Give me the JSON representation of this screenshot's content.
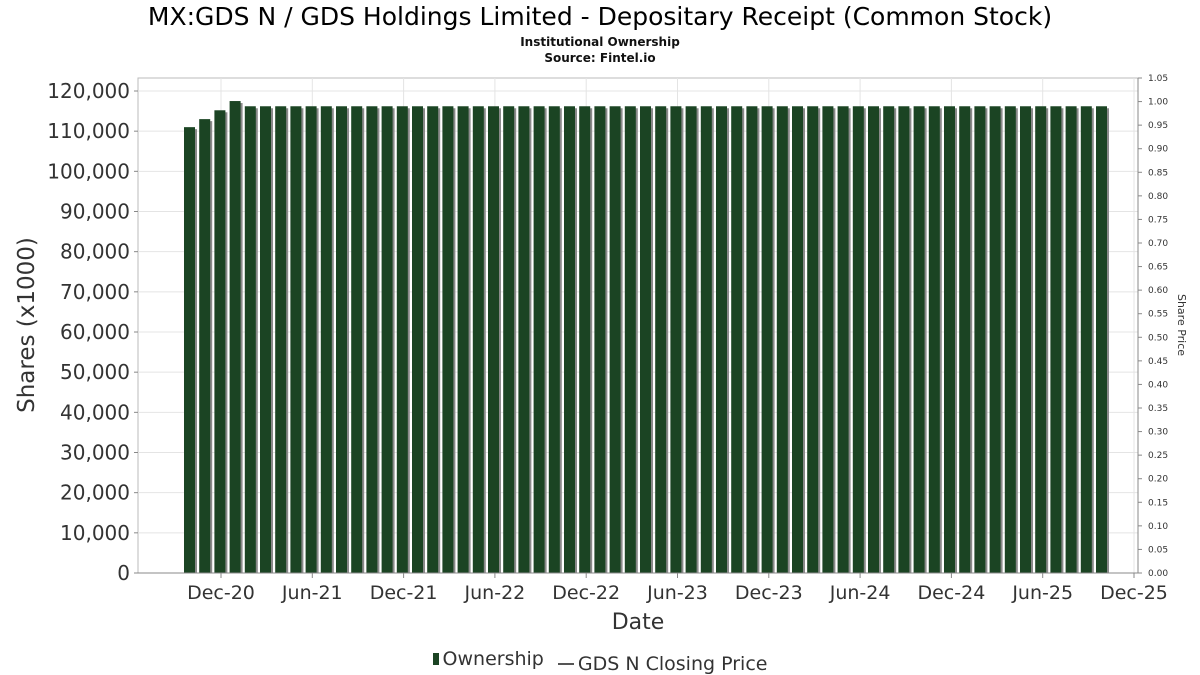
{
  "chart_data": {
    "type": "bar",
    "title": "MX:GDS N / GDS Holdings Limited - Depositary Receipt (Common Stock)",
    "subtitle": [
      "Institutional Ownership",
      "Source: Fintel.io"
    ],
    "xlabel": "Date",
    "ylabel": "Shares (x1000)",
    "y2label": "Share Price",
    "ylim": [
      0,
      120000
    ],
    "y2lim": [
      0,
      1.05
    ],
    "yticks": [
      "0",
      "10,000",
      "20,000",
      "30,000",
      "40,000",
      "50,000",
      "60,000",
      "70,000",
      "80,000",
      "90,000",
      "100,000",
      "110,000",
      "120,000"
    ],
    "y2ticks": [
      "0.00",
      "0.05",
      "0.10",
      "0.15",
      "0.20",
      "0.25",
      "0.30",
      "0.35",
      "0.40",
      "0.45",
      "0.50",
      "0.55",
      "0.60",
      "0.65",
      "0.70",
      "0.75",
      "0.80",
      "0.85",
      "0.90",
      "0.95",
      "1.00",
      "1.05"
    ],
    "xticks": [
      "Dec-20",
      "Jun-21",
      "Dec-21",
      "Jun-22",
      "Dec-22",
      "Jun-23",
      "Dec-23",
      "Jun-24",
      "Dec-24",
      "Jun-25",
      "Dec-25"
    ],
    "grid": true,
    "legend_position": "bottom",
    "series": [
      {
        "name": "Ownership",
        "color": "#1b4423",
        "values": [
          111000,
          113000,
          115200,
          117500,
          116200,
          116200,
          116200,
          116200,
          116200,
          116200,
          116200,
          116200,
          116200,
          116200,
          116200,
          116200,
          116200,
          116200,
          116200,
          116200,
          116200,
          116200,
          116200,
          116200,
          116200,
          116200,
          116200,
          116200,
          116200,
          116200,
          116200,
          116200,
          116200,
          116200,
          116200,
          116200,
          116200,
          116200,
          116200,
          116200,
          116200,
          116200,
          116200,
          116200,
          116200,
          116200,
          116200,
          116200,
          116200,
          116200,
          116200,
          116200,
          116200,
          116200,
          116200,
          116200,
          116200,
          116200,
          116200,
          116200,
          116200
        ]
      },
      {
        "name": "GDS N Closing Price",
        "color": "#555555",
        "values": []
      }
    ]
  }
}
